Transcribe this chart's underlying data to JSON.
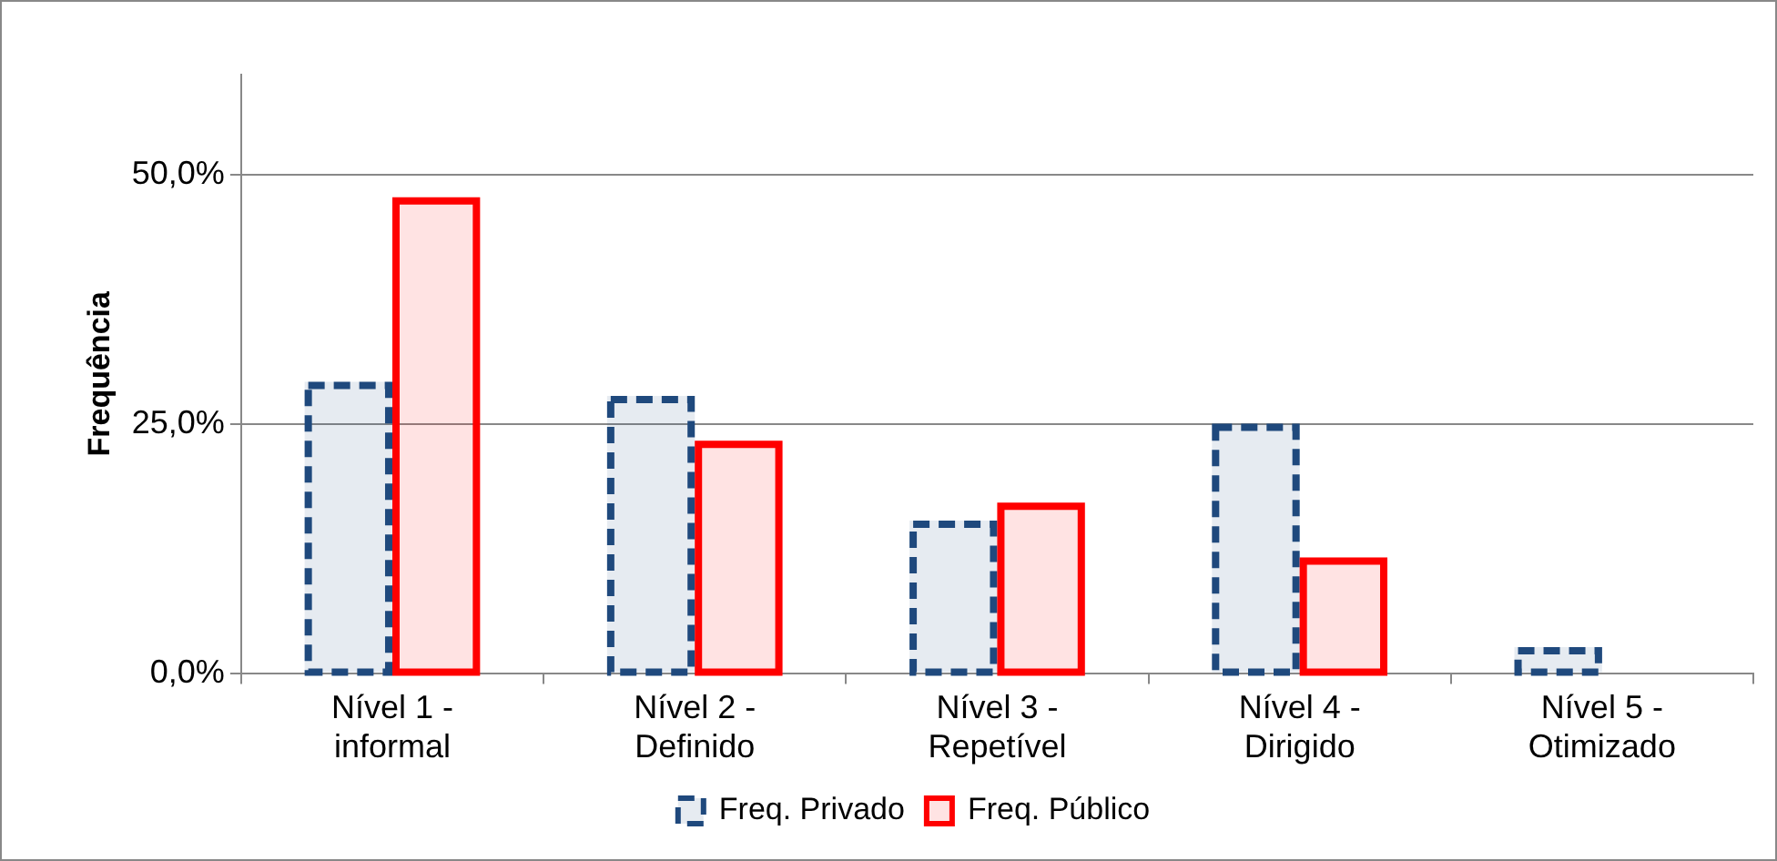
{
  "chart_data": {
    "type": "bar",
    "ylabel": "Frequência",
    "categories": [
      "Nível 1 - informal",
      "Nível 2 - Definido",
      "Nível 3 - Repetível",
      "Nível 4 - Dirigido",
      "Nível 5 - Otimizado"
    ],
    "series": [
      {
        "name": "Freq. Privado",
        "color": "#1f497d",
        "line_style": "dashed",
        "values": [
          29.2,
          27.8,
          15.3,
          25.0,
          2.6
        ]
      },
      {
        "name": "Freq. Público",
        "color": "#ff0000",
        "line_style": "solid",
        "values": [
          47.7,
          23.3,
          17.1,
          11.6,
          0
        ]
      }
    ],
    "ylim": [
      0,
      60
    ],
    "yticks": [
      {
        "value": 0,
        "label": "0,0%"
      },
      {
        "value": 25,
        "label": "25,0%"
      },
      {
        "value": 50,
        "label": "50,0%"
      }
    ],
    "grid": "y",
    "legend": "bottom"
  }
}
